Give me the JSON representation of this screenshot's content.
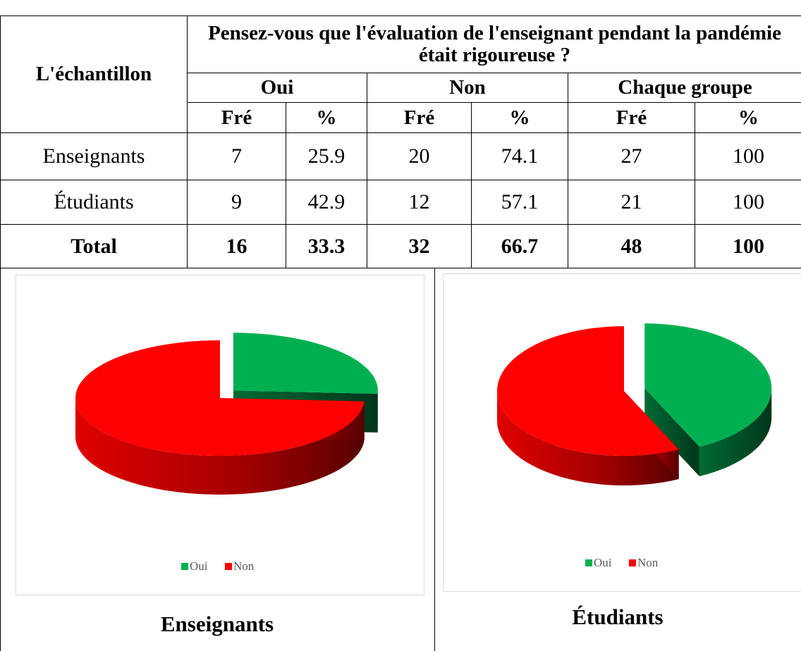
{
  "table": {
    "header": {
      "sample": "L'échantillon",
      "question": "Pensez-vous que l'évaluation de l'enseignant pendant la pandémie était rigoureuse ?",
      "groups": [
        "Oui",
        "Non",
        "Chaque groupe"
      ],
      "subheaders": [
        "Fré",
        "%",
        "Fré",
        "%",
        "Fré",
        "%"
      ]
    },
    "rows": [
      {
        "label": "Enseignants",
        "cells": [
          7,
          25.9,
          20,
          74.1,
          27,
          100
        ]
      },
      {
        "label": "Étudiants",
        "cells": [
          9,
          42.9,
          12,
          57.1,
          21,
          100
        ]
      },
      {
        "label": "Total",
        "cells": [
          16,
          33.3,
          32,
          66.7,
          48,
          100
        ]
      }
    ]
  },
  "chart_data": [
    {
      "type": "pie",
      "title": "Enseignants",
      "categories": [
        "Oui",
        "Non"
      ],
      "values": [
        25.9,
        74.1
      ],
      "colors": [
        "#00b050",
        "#ff0000"
      ],
      "legend": "bottom"
    },
    {
      "type": "pie",
      "title": "Étudiants",
      "categories": [
        "Oui",
        "Non"
      ],
      "values": [
        42.9,
        57.1
      ],
      "colors": [
        "#00b050",
        "#ff0000"
      ],
      "legend": "bottom"
    }
  ]
}
